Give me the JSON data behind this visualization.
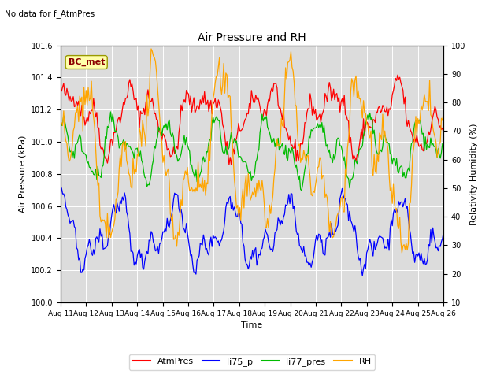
{
  "title": "Air Pressure and RH",
  "top_label": "No data for f_AtmPres",
  "box_label": "BC_met",
  "xlabel": "Time",
  "ylabel_left": "Air Pressure (kPa)",
  "ylabel_right": "Relativity Humidity (%)",
  "ylim_left": [
    100.0,
    101.6
  ],
  "ylim_right": [
    10,
    100
  ],
  "yticks_left": [
    100.0,
    100.2,
    100.4,
    100.6,
    100.8,
    101.0,
    101.2,
    101.4,
    101.6
  ],
  "yticks_right": [
    10,
    20,
    30,
    40,
    50,
    60,
    70,
    80,
    90,
    100
  ],
  "xtick_labels": [
    "Aug 11",
    "Aug 12",
    "Aug 13",
    "Aug 14",
    "Aug 15",
    "Aug 16",
    "Aug 17",
    "Aug 18",
    "Aug 19",
    "Aug 20",
    "Aug 21",
    "Aug 22",
    "Aug 23",
    "Aug 24",
    "Aug 25",
    "Aug 26"
  ],
  "n_points": 360,
  "bg_color": "#dcdcdc",
  "colors": {
    "AtmPres": "#ff0000",
    "li75_p": "#0000ff",
    "li77_pres": "#00bb00",
    "RH": "#ffa500"
  },
  "legend_labels": [
    "AtmPres",
    "li75_p",
    "li77_pres",
    "RH"
  ]
}
